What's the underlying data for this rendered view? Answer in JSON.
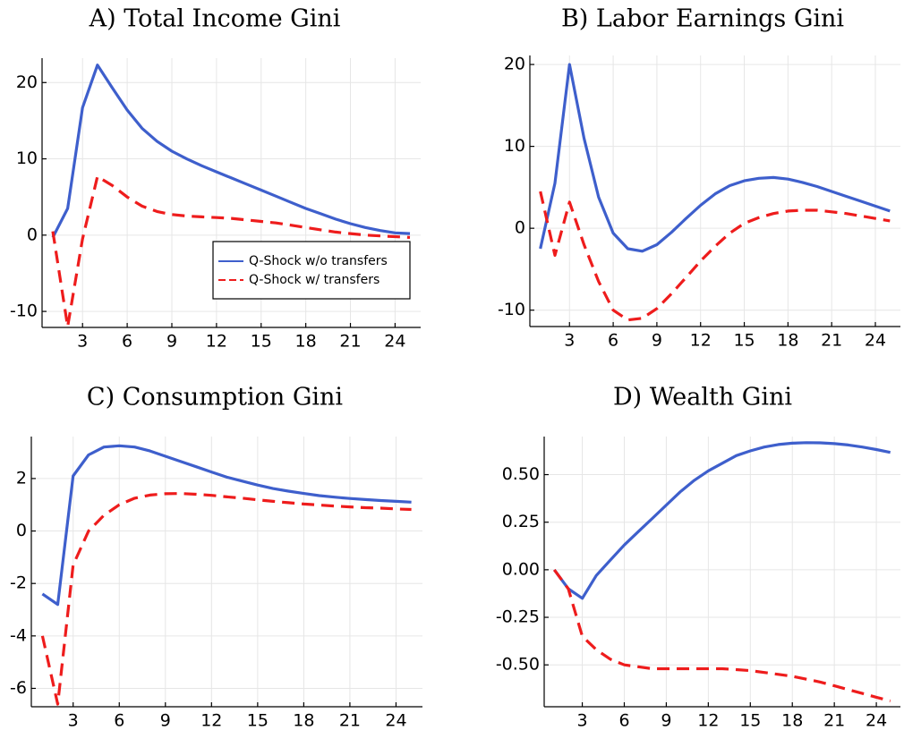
{
  "chart_data": [
    {
      "type": "line",
      "title": "A) Total Income Gini",
      "x": [
        1,
        2,
        3,
        4,
        5,
        6,
        7,
        8,
        9,
        10,
        11,
        12,
        13,
        14,
        15,
        16,
        17,
        18,
        19,
        20,
        21,
        22,
        23,
        24,
        25
      ],
      "xlim": [
        0.28,
        25.72
      ],
      "xticks": [
        3,
        6,
        9,
        12,
        15,
        18,
        21,
        24
      ],
      "ylim": [
        -12.1,
        23.2
      ],
      "yticks": [
        -10,
        0,
        10,
        20
      ],
      "grid": true,
      "legend": "bottomright",
      "series": [
        {
          "name": "Q-Shock w/o transfers",
          "color": "#3e5fcc",
          "style": "solid",
          "values": [
            -0.3,
            3.5,
            16.7,
            22.3,
            19.3,
            16.4,
            14.0,
            12.3,
            11.0,
            10.0,
            9.1,
            8.3,
            7.5,
            6.7,
            5.9,
            5.1,
            4.3,
            3.5,
            2.8,
            2.1,
            1.5,
            1.0,
            0.6,
            0.3,
            0.2
          ]
        },
        {
          "name": "Q-Shock w/ transfers",
          "color": "#ee1c1c",
          "style": "dashed",
          "values": [
            0.5,
            -12.0,
            -0.5,
            7.7,
            6.5,
            5.0,
            3.8,
            3.1,
            2.7,
            2.5,
            2.4,
            2.3,
            2.2,
            2.0,
            1.8,
            1.6,
            1.3,
            1.0,
            0.7,
            0.4,
            0.2,
            0.0,
            -0.1,
            -0.2,
            -0.3
          ]
        }
      ]
    },
    {
      "type": "line",
      "title": "B) Labor Earnings Gini",
      "x": [
        1,
        2,
        3,
        4,
        5,
        6,
        7,
        8,
        9,
        10,
        11,
        12,
        13,
        14,
        15,
        16,
        17,
        18,
        19,
        20,
        21,
        22,
        23,
        24,
        25
      ],
      "xlim": [
        0.28,
        25.72
      ],
      "xticks": [
        3,
        6,
        9,
        12,
        15,
        18,
        21,
        24
      ],
      "ylim": [
        -12.0,
        21.1
      ],
      "yticks": [
        -10,
        0,
        10,
        20
      ],
      "grid": true,
      "series": [
        {
          "color": "#3e5fcc",
          "style": "solid",
          "values": [
            -2.5,
            5.5,
            20.0,
            11.0,
            3.8,
            -0.6,
            -2.5,
            -2.8,
            -2.0,
            -0.5,
            1.2,
            2.8,
            4.2,
            5.2,
            5.8,
            6.1,
            6.2,
            6.0,
            5.6,
            5.1,
            4.5,
            3.9,
            3.3,
            2.7,
            2.1
          ]
        },
        {
          "color": "#ee1c1c",
          "style": "dashed",
          "values": [
            4.5,
            -3.3,
            3.2,
            -2.0,
            -6.5,
            -10.0,
            -11.2,
            -11.0,
            -9.8,
            -8.0,
            -6.0,
            -4.0,
            -2.2,
            -0.6,
            0.6,
            1.3,
            1.8,
            2.1,
            2.2,
            2.2,
            2.0,
            1.8,
            1.5,
            1.2,
            0.9
          ]
        }
      ]
    },
    {
      "type": "line",
      "title": "C) Consumption Gini",
      "x": [
        1,
        2,
        3,
        4,
        5,
        6,
        7,
        8,
        9,
        10,
        11,
        12,
        13,
        14,
        15,
        16,
        17,
        18,
        19,
        20,
        21,
        22,
        23,
        24,
        25
      ],
      "xlim": [
        0.28,
        25.72
      ],
      "xticks": [
        3,
        6,
        9,
        12,
        15,
        18,
        21,
        24
      ],
      "ylim": [
        -6.7,
        3.6
      ],
      "yticks": [
        -6,
        -4,
        -2,
        0,
        2
      ],
      "grid": true,
      "series": [
        {
          "color": "#3e5fcc",
          "style": "solid",
          "values": [
            -2.4,
            -2.8,
            2.1,
            2.9,
            3.2,
            3.25,
            3.2,
            3.05,
            2.85,
            2.65,
            2.45,
            2.25,
            2.05,
            1.9,
            1.75,
            1.62,
            1.52,
            1.43,
            1.35,
            1.29,
            1.24,
            1.2,
            1.16,
            1.13,
            1.1
          ]
        },
        {
          "color": "#ee1c1c",
          "style": "dashed",
          "values": [
            -4.0,
            -6.6,
            -1.3,
            0.0,
            0.6,
            1.0,
            1.25,
            1.37,
            1.42,
            1.43,
            1.4,
            1.36,
            1.3,
            1.25,
            1.19,
            1.13,
            1.08,
            1.03,
            0.99,
            0.95,
            0.92,
            0.89,
            0.87,
            0.84,
            0.82
          ]
        }
      ]
    },
    {
      "type": "line",
      "title": "D) Wealth Gini",
      "x": [
        1,
        2,
        3,
        4,
        5,
        6,
        7,
        8,
        9,
        10,
        11,
        12,
        13,
        14,
        15,
        16,
        17,
        18,
        19,
        20,
        21,
        22,
        23,
        24,
        25
      ],
      "xlim": [
        0.28,
        25.72
      ],
      "xticks": [
        3,
        6,
        9,
        12,
        15,
        18,
        21,
        24
      ],
      "ylim": [
        -0.72,
        0.7
      ],
      "yticks": [
        {
          "value": -0.5,
          "label": "-0.50"
        },
        -0.25,
        {
          "value": 0,
          "label": "0.00"
        },
        0.25,
        {
          "value": 0.5,
          "label": "0.50"
        }
      ],
      "grid": true,
      "series": [
        {
          "color": "#3e5fcc",
          "style": "solid",
          "values": [
            0.0,
            -0.1,
            -0.15,
            -0.03,
            0.05,
            0.13,
            0.2,
            0.27,
            0.34,
            0.41,
            0.47,
            0.52,
            0.56,
            0.6,
            0.625,
            0.645,
            0.658,
            0.665,
            0.668,
            0.667,
            0.663,
            0.656,
            0.645,
            0.632,
            0.617
          ]
        },
        {
          "color": "#ee1c1c",
          "style": "dashed",
          "values": [
            0.0,
            -0.1,
            -0.35,
            -0.42,
            -0.47,
            -0.5,
            -0.51,
            -0.52,
            -0.52,
            -0.52,
            -0.52,
            -0.52,
            -0.52,
            -0.525,
            -0.53,
            -0.54,
            -0.55,
            -0.56,
            -0.575,
            -0.59,
            -0.61,
            -0.63,
            -0.65,
            -0.67,
            -0.69
          ]
        }
      ]
    }
  ]
}
